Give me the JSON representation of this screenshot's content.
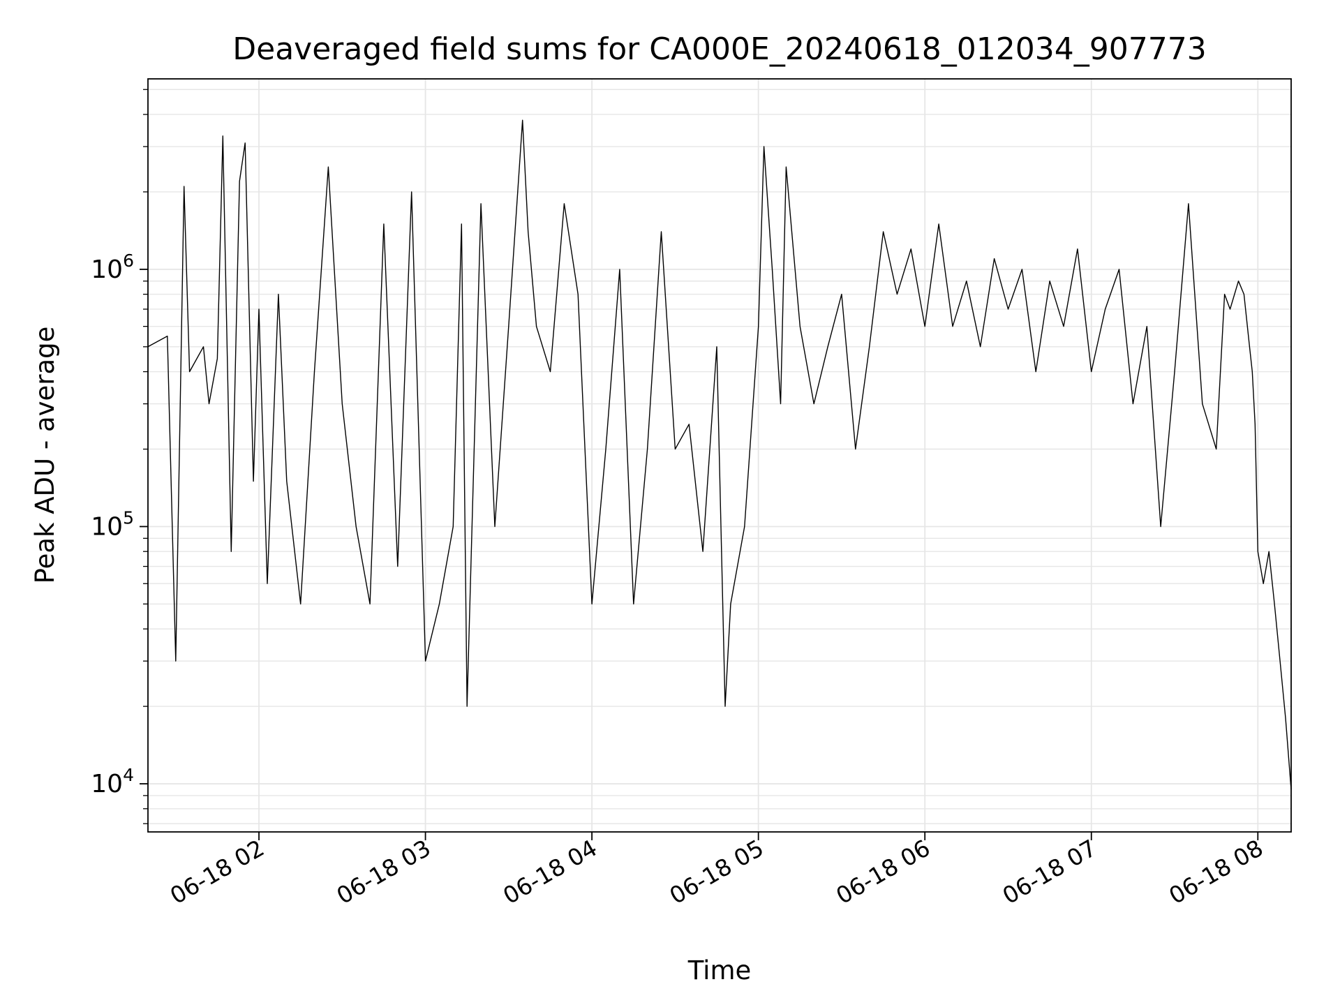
{
  "chart_data": {
    "type": "line",
    "title": "Deaveraged field sums for CA000E_20240618_012034_907773",
    "xlabel": "Time",
    "ylabel": "Peak ADU - average",
    "x_ticks": [
      "06-18 02",
      "06-18 03",
      "06-18 04",
      "06-18 05",
      "06-18 06",
      "06-18 07",
      "06-18 08"
    ],
    "x_tick_times": [
      "2024-06-18 02:00",
      "2024-06-18 03:00",
      "2024-06-18 04:00",
      "2024-06-18 05:00",
      "2024-06-18 06:00",
      "2024-06-18 07:00",
      "2024-06-18 08:00"
    ],
    "xlim": [
      "2024-06-18 01:20",
      "2024-06-18 08:12"
    ],
    "y_scale": "log",
    "ylim": [
      6500,
      5500000
    ],
    "y_ticks": [
      {
        "base": "10",
        "exp": "4",
        "value": 10000
      },
      {
        "base": "10",
        "exp": "5",
        "value": 100000
      },
      {
        "base": "10",
        "exp": "6",
        "value": 1000000
      }
    ],
    "grid": true,
    "line_color": "#000000",
    "grid_color": "#e6e6e6",
    "series": [
      {
        "x": [
          "2024-06-18 01:20",
          "2024-06-18 01:27",
          "2024-06-18 01:30",
          "2024-06-18 01:33",
          "2024-06-18 01:35",
          "2024-06-18 01:40",
          "2024-06-18 01:42",
          "2024-06-18 01:45",
          "2024-06-18 01:47",
          "2024-06-18 01:50",
          "2024-06-18 01:53",
          "2024-06-18 01:55",
          "2024-06-18 01:58",
          "2024-06-18 02:00",
          "2024-06-18 02:03",
          "2024-06-18 02:07",
          "2024-06-18 02:10",
          "2024-06-18 02:15",
          "2024-06-18 02:20",
          "2024-06-18 02:25",
          "2024-06-18 02:30",
          "2024-06-18 02:35",
          "2024-06-18 02:40",
          "2024-06-18 02:45",
          "2024-06-18 02:50",
          "2024-06-18 02:55",
          "2024-06-18 03:00",
          "2024-06-18 03:05",
          "2024-06-18 03:10",
          "2024-06-18 03:13",
          "2024-06-18 03:15",
          "2024-06-18 03:20",
          "2024-06-18 03:25",
          "2024-06-18 03:30",
          "2024-06-18 03:35",
          "2024-06-18 03:37",
          "2024-06-18 03:40",
          "2024-06-18 03:45",
          "2024-06-18 03:50",
          "2024-06-18 03:55",
          "2024-06-18 04:00",
          "2024-06-18 04:05",
          "2024-06-18 04:10",
          "2024-06-18 04:15",
          "2024-06-18 04:20",
          "2024-06-18 04:25",
          "2024-06-18 04:30",
          "2024-06-18 04:35",
          "2024-06-18 04:40",
          "2024-06-18 04:45",
          "2024-06-18 04:48",
          "2024-06-18 04:50",
          "2024-06-18 04:55",
          "2024-06-18 05:00",
          "2024-06-18 05:02",
          "2024-06-18 05:05",
          "2024-06-18 05:08",
          "2024-06-18 05:10",
          "2024-06-18 05:15",
          "2024-06-18 05:20",
          "2024-06-18 05:25",
          "2024-06-18 05:30",
          "2024-06-18 05:35",
          "2024-06-18 05:40",
          "2024-06-18 05:45",
          "2024-06-18 05:50",
          "2024-06-18 05:55",
          "2024-06-18 06:00",
          "2024-06-18 06:05",
          "2024-06-18 06:10",
          "2024-06-18 06:15",
          "2024-06-18 06:20",
          "2024-06-18 06:25",
          "2024-06-18 06:30",
          "2024-06-18 06:35",
          "2024-06-18 06:40",
          "2024-06-18 06:45",
          "2024-06-18 06:50",
          "2024-06-18 06:55",
          "2024-06-18 07:00",
          "2024-06-18 07:05",
          "2024-06-18 07:10",
          "2024-06-18 07:15",
          "2024-06-18 07:20",
          "2024-06-18 07:25",
          "2024-06-18 07:30",
          "2024-06-18 07:35",
          "2024-06-18 07:40",
          "2024-06-18 07:45",
          "2024-06-18 07:48",
          "2024-06-18 07:50",
          "2024-06-18 07:53",
          "2024-06-18 07:55",
          "2024-06-18 07:57",
          "2024-06-18 07:58",
          "2024-06-18 07:59",
          "2024-06-18 08:00",
          "2024-06-18 08:02",
          "2024-06-18 08:04",
          "2024-06-18 08:06",
          "2024-06-18 08:08",
          "2024-06-18 08:10",
          "2024-06-18 08:12"
        ],
        "y": [
          500000,
          550000,
          30000,
          2100000,
          400000,
          500000,
          300000,
          450000,
          3300000,
          80000,
          2200000,
          3100000,
          150000,
          700000,
          60000,
          800000,
          150000,
          50000,
          400000,
          2500000,
          300000,
          100000,
          50000,
          1500000,
          70000,
          2000000,
          30000,
          50000,
          100000,
          1500000,
          20000,
          1800000,
          100000,
          600000,
          3800000,
          1400000,
          600000,
          400000,
          1800000,
          800000,
          50000,
          200000,
          1000000,
          50000,
          200000,
          1400000,
          200000,
          250000,
          80000,
          500000,
          20000,
          50000,
          100000,
          600000,
          3000000,
          1000000,
          300000,
          2500000,
          600000,
          300000,
          500000,
          800000,
          200000,
          500000,
          1400000,
          800000,
          1200000,
          600000,
          1500000,
          600000,
          900000,
          500000,
          1100000,
          700000,
          1000000,
          400000,
          900000,
          600000,
          1200000,
          400000,
          700000,
          1000000,
          300000,
          600000,
          100000,
          400000,
          1800000,
          300000,
          200000,
          800000,
          700000,
          900000,
          800000,
          500000,
          400000,
          250000,
          80000,
          60000,
          80000,
          50000,
          30000,
          18000,
          9500
        ]
      }
    ]
  }
}
